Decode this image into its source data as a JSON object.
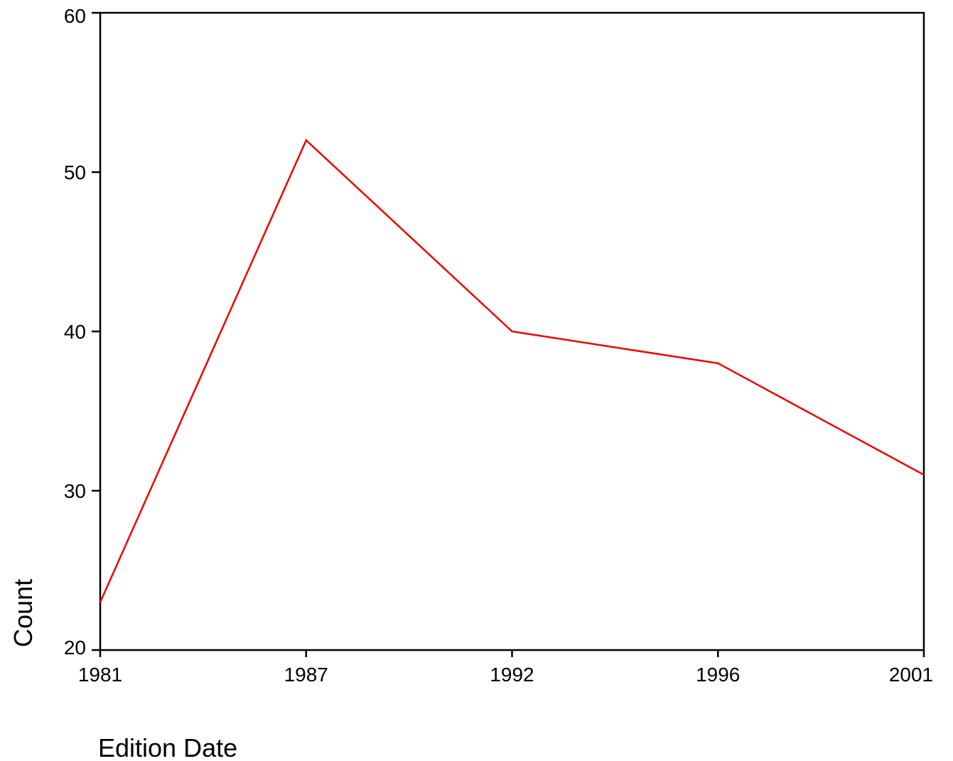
{
  "chart_data": {
    "type": "line",
    "title": "",
    "xlabel": "Edition Date",
    "ylabel": "Count",
    "categories": [
      "1981",
      "1987",
      "1992",
      "1996",
      "2001"
    ],
    "series": [
      {
        "values": [
          23,
          52,
          40,
          38,
          31
        ],
        "color": "#ee0000"
      }
    ],
    "ylim": [
      20,
      60
    ],
    "yticks": [
      20,
      30,
      40,
      50,
      60
    ],
    "ytick_labels": [
      "20",
      "30",
      "40",
      "50",
      "60"
    ],
    "grid": false,
    "axis_color": "#000000"
  }
}
